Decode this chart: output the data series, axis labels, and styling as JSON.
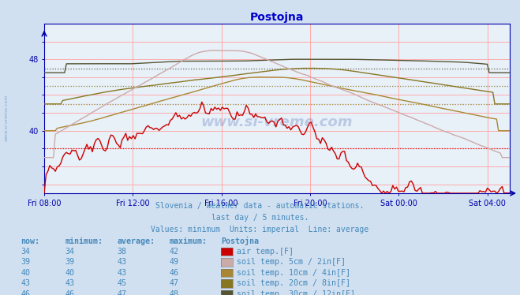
{
  "title": "Postojna",
  "title_color": "#0000cc",
  "bg_color": "#d0e0f0",
  "plot_bg_color": "#e8f0f8",
  "grid_color": "#ffaaaa",
  "axis_color": "#0000aa",
  "text_color": "#4488bb",
  "subtitle_lines": [
    "Slovenia / weather data - automatic stations.",
    "last day / 5 minutes.",
    "Values: minimum  Units: imperial  Line: average"
  ],
  "x_tick_labels": [
    "Fri 08:00",
    "Fri 12:00",
    "Fri 16:00",
    "Fri 20:00",
    "Sat 00:00",
    "Sat 04:00"
  ],
  "x_tick_positions": [
    0,
    4,
    8,
    12,
    16,
    20
  ],
  "ylim_min": 33,
  "ylim_max": 52,
  "ytick_labeled": [
    40,
    48
  ],
  "avg_lines": [
    {
      "y": 38,
      "color": "#cc0000"
    },
    {
      "y": 43,
      "color": "#ccaaaa"
    },
    {
      "y": 43,
      "color": "#aa8833"
    },
    {
      "y": 45,
      "color": "#887722"
    },
    {
      "y": 47,
      "color": "#555533"
    }
  ],
  "series_colors": [
    "#cc0000",
    "#ccaaaa",
    "#aa8833",
    "#887722",
    "#555533"
  ],
  "legend_header": [
    "now:",
    "minimum:",
    "average:",
    "maximum:",
    "Postojna"
  ],
  "legend_rows": [
    {
      "now": "34",
      "min": "34",
      "avg": "38",
      "max": "42",
      "color": "#cc0000",
      "label": "air temp.[F]"
    },
    {
      "now": "39",
      "min": "39",
      "avg": "43",
      "max": "49",
      "color": "#ccaaaa",
      "label": "soil temp. 5cm / 2in[F]"
    },
    {
      "now": "40",
      "min": "40",
      "avg": "43",
      "max": "46",
      "color": "#aa8833",
      "label": "soil temp. 10cm / 4in[F]"
    },
    {
      "now": "43",
      "min": "43",
      "avg": "45",
      "max": "47",
      "color": "#887722",
      "label": "soil temp. 20cm / 8in[F]"
    },
    {
      "now": "46",
      "min": "46",
      "avg": "47",
      "max": "48",
      "color": "#555533",
      "label": "soil temp. 30cm / 12in[F]"
    }
  ]
}
